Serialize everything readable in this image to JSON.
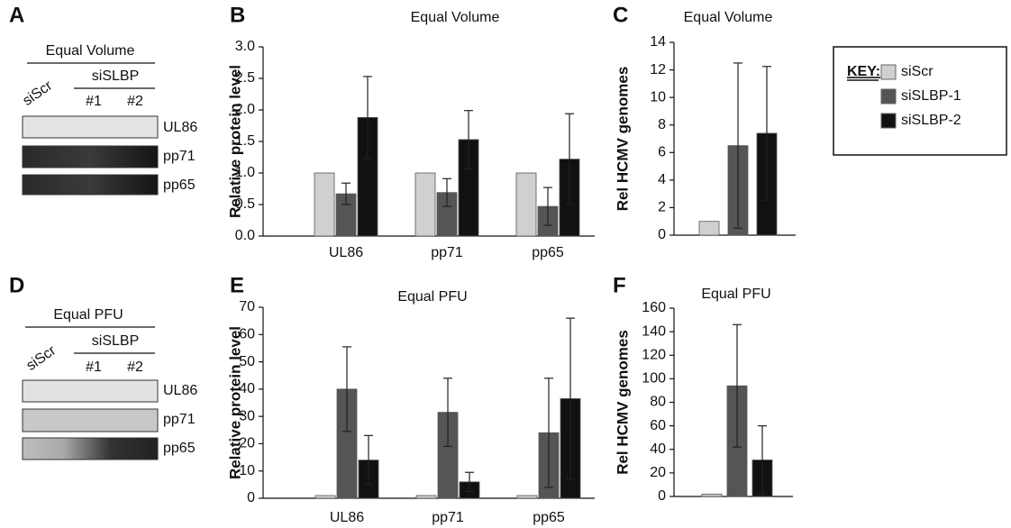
{
  "blots": [
    {
      "panel": "A",
      "title": "Equal Volume",
      "control": "siScr",
      "group": "siSLBP",
      "lanes": [
        "#1",
        "#2"
      ],
      "bands": [
        "UL86",
        "pp71",
        "pp65"
      ]
    },
    {
      "panel": "D",
      "title": "Equal PFU",
      "control": "siScr",
      "group": "siSLBP",
      "lanes": [
        "#1",
        "#2"
      ],
      "bands": [
        "UL86",
        "pp71",
        "pp65"
      ]
    }
  ],
  "key": {
    "title": "KEY:"
  },
  "chart_data": [
    {
      "type": "bar",
      "panel": "B",
      "title": "Equal Volume",
      "y_label": "Relative protein level",
      "categories": [
        "UL86",
        "pp71",
        "pp65"
      ],
      "series": [
        {
          "name": "siScr",
          "color": "#d0d0d0",
          "values": [
            1,
            1,
            1
          ]
        },
        {
          "name": "siSLBP-1",
          "color": "#555555",
          "values": [
            0.67,
            0.69,
            0.47
          ],
          "errors": [
            0.17,
            0.22,
            0.3
          ]
        },
        {
          "name": "siSLBP-2",
          "color": "#111111",
          "values": [
            1.88,
            1.53,
            1.22
          ],
          "errors": [
            0.65,
            0.46,
            0.72
          ]
        }
      ],
      "ylim": [
        0,
        3
      ],
      "yticks": [
        {
          "value": 0,
          "label": "0.0"
        },
        0.5,
        {
          "value": 1,
          "label": "1.0"
        },
        1.5,
        {
          "value": 2,
          "label": "2.0"
        },
        2.5,
        {
          "value": 3,
          "label": "3.0"
        }
      ]
    },
    {
      "type": "bar",
      "panel": "C",
      "title": "Equal Volume",
      "y_label": "Rel HCMV genomes",
      "categories": [
        null
      ],
      "series": [
        {
          "color": "#d0d0d0",
          "values": [
            1
          ]
        },
        {
          "color": "#555555",
          "values": [
            6.5
          ],
          "errors": [
            6
          ]
        },
        {
          "color": "#111111",
          "values": [
            7.4
          ],
          "errors": [
            4.85
          ]
        }
      ],
      "ylim": [
        0,
        14
      ],
      "yticks": [
        0,
        2,
        4,
        6,
        8,
        10,
        12,
        14
      ]
    },
    {
      "type": "bar",
      "panel": "E",
      "title": "Equal PFU",
      "y_label": "Relative protein level",
      "categories": [
        "UL86",
        "pp71",
        "pp65"
      ],
      "series": [
        {
          "color": "#d0d0d0",
          "values": [
            1,
            1,
            1
          ]
        },
        {
          "color": "#555555",
          "values": [
            40,
            31.5,
            24
          ],
          "errors": [
            15.5,
            12.5,
            20
          ]
        },
        {
          "color": "#111111",
          "values": [
            14,
            6,
            36.5
          ],
          "errors": [
            9,
            3.5,
            29.5
          ]
        }
      ],
      "ylim": [
        0,
        70
      ],
      "yticks": [
        0,
        10,
        20,
        30,
        40,
        50,
        60,
        70
      ]
    },
    {
      "type": "bar",
      "panel": "F",
      "title": "Equal PFU",
      "y_label": "Rel HCMV genomes",
      "categories": [
        null
      ],
      "series": [
        {
          "color": "#d0d0d0",
          "values": [
            2
          ]
        },
        {
          "color": "#555555",
          "values": [
            94
          ],
          "errors": [
            52
          ]
        },
        {
          "color": "#111111",
          "values": [
            31
          ],
          "errors": [
            29
          ]
        }
      ],
      "ylim": [
        0,
        160
      ],
      "yticks": [
        0,
        20,
        40,
        60,
        80,
        100,
        120,
        140,
        160
      ]
    }
  ]
}
